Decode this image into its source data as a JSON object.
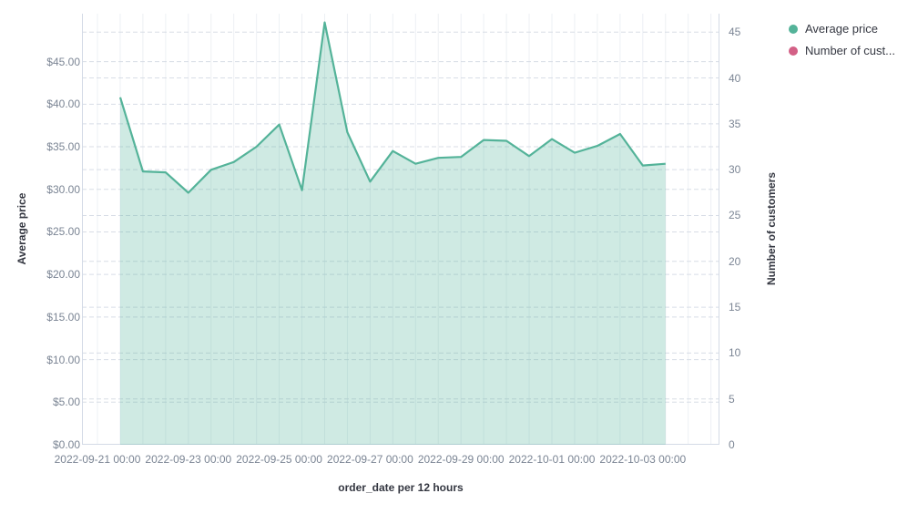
{
  "legend": {
    "position": "top-right",
    "items": [
      {
        "label": "Average price",
        "color": "#54B399"
      },
      {
        "label": "Number of cust...",
        "color": "#D36086"
      }
    ]
  },
  "chart_data": {
    "type": "area",
    "title": "",
    "xlabel": "order_date per 12 hours",
    "ylabel_left": "Average price",
    "ylabel_right": "Number of customers",
    "grid": true,
    "legend_position": "top-right",
    "ylim_left": [
      0,
      50
    ],
    "ylim_right": [
      0,
      45
    ],
    "y_left_tick_labels": [
      "$0.00",
      "$5.00",
      "$10.00",
      "$15.00",
      "$20.00",
      "$25.00",
      "$30.00",
      "$35.00",
      "$40.00",
      "$45.00"
    ],
    "y_left_tick_values": [
      0,
      5,
      10,
      15,
      20,
      25,
      30,
      35,
      40,
      45
    ],
    "y_right_tick_labels": [
      "0",
      "5",
      "10",
      "15",
      "20",
      "25",
      "30",
      "35",
      "40",
      "45"
    ],
    "y_right_tick_values": [
      0,
      5,
      10,
      15,
      20,
      25,
      30,
      35,
      40,
      45
    ],
    "x_tick_labels": [
      "2022-09-21 00:00",
      "2022-09-23 00:00",
      "2022-09-25 00:00",
      "2022-09-27 00:00",
      "2022-09-29 00:00",
      "2022-10-01 00:00",
      "2022-10-03 00:00"
    ],
    "series": [
      {
        "name": "Average price",
        "axis": "left",
        "color": "#54B399",
        "fill": "rgba(84,179,153,0.28)",
        "x": [
          "2022-09-21 12:00",
          "2022-09-22 00:00",
          "2022-09-22 12:00",
          "2022-09-23 00:00",
          "2022-09-23 12:00",
          "2022-09-24 00:00",
          "2022-09-24 12:00",
          "2022-09-25 00:00",
          "2022-09-25 12:00",
          "2022-09-26 00:00",
          "2022-09-26 12:00",
          "2022-09-27 00:00",
          "2022-09-27 12:00",
          "2022-09-28 00:00",
          "2022-09-28 12:00",
          "2022-09-29 00:00",
          "2022-09-29 12:00",
          "2022-09-30 00:00",
          "2022-09-30 12:00",
          "2022-10-01 00:00",
          "2022-10-01 12:00",
          "2022-10-02 00:00",
          "2022-10-02 12:00",
          "2022-10-03 00:00",
          "2022-10-03 12:00"
        ],
        "values": [
          40.8,
          32.1,
          32.0,
          29.6,
          32.3,
          33.2,
          35.0,
          37.6,
          29.9,
          49.6,
          36.7,
          30.9,
          34.5,
          33.0,
          33.7,
          33.8,
          35.8,
          35.7,
          33.9,
          35.9,
          34.3,
          35.1,
          36.5,
          32.8,
          33.0
        ]
      },
      {
        "name": "Number of customers",
        "axis": "right",
        "color": "#D36086",
        "values": [],
        "visible_in_plot": false
      }
    ],
    "colors": {
      "grid_dashed": "#d8dde6",
      "grid_vertical": "#edf0f4",
      "axis_line": "#d3dae6",
      "tick_text": "#7b8594",
      "axis_title_text": "#343741"
    }
  }
}
